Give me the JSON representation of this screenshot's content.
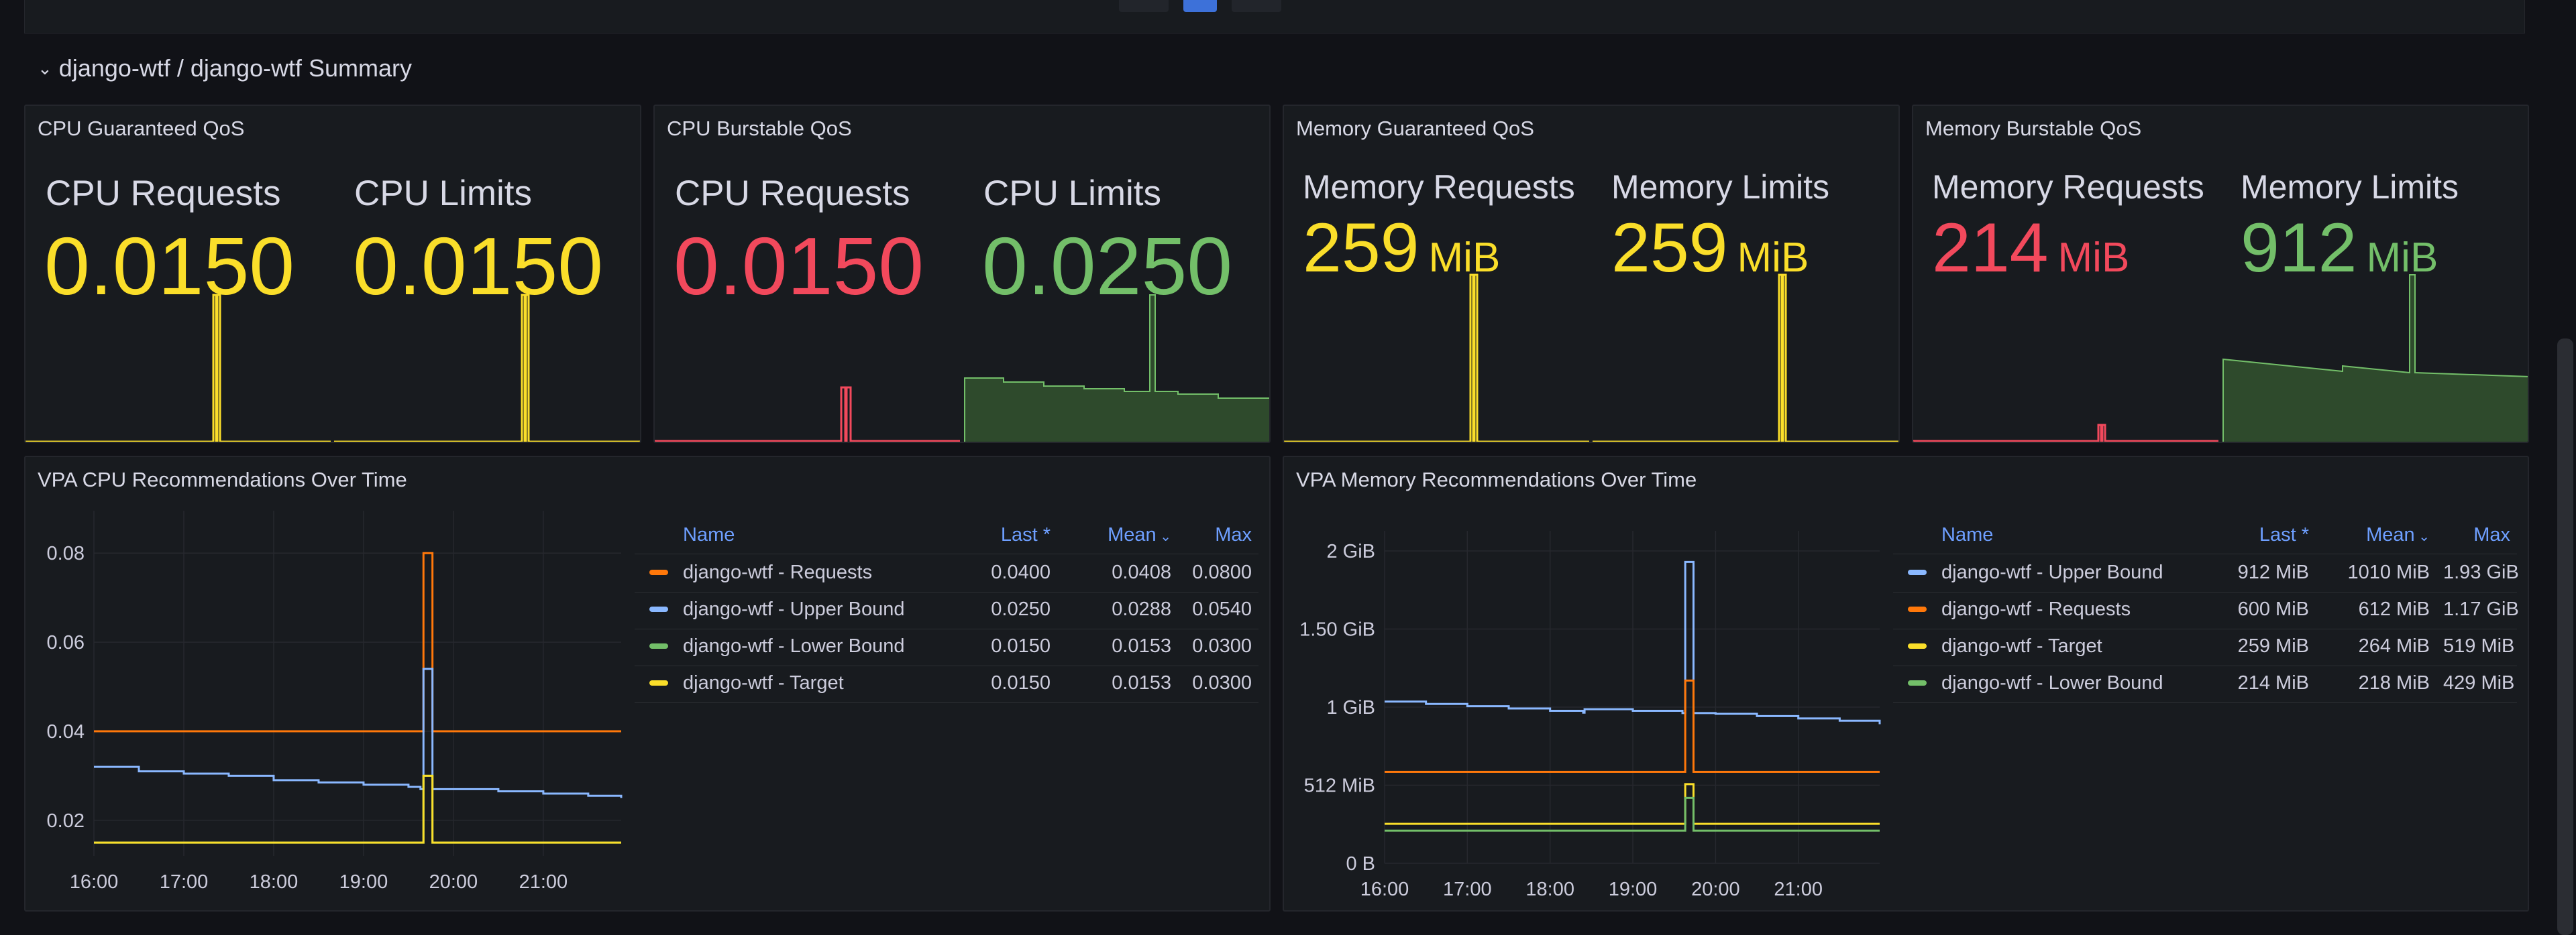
{
  "row": {
    "title": "django-wtf / django-wtf Summary"
  },
  "panels": {
    "cpu_guaranteed": {
      "title": "CPU Guaranteed QoS",
      "requests": {
        "label": "CPU Requests",
        "value": "0.0150",
        "color": "#fade2a"
      },
      "limits": {
        "label": "CPU Limits",
        "value": "0.0150",
        "color": "#fade2a"
      }
    },
    "cpu_burstable": {
      "title": "CPU Burstable QoS",
      "requests": {
        "label": "CPU Requests",
        "value": "0.0150",
        "color": "#f2495c"
      },
      "limits": {
        "label": "CPU Limits",
        "value": "0.0250",
        "color": "#73bf69"
      }
    },
    "mem_guaranteed": {
      "title": "Memory Guaranteed QoS",
      "requests": {
        "label": "Memory Requests",
        "value": "259",
        "unit": "MiB",
        "color": "#fade2a"
      },
      "limits": {
        "label": "Memory Limits",
        "value": "259",
        "unit": "MiB",
        "color": "#fade2a"
      }
    },
    "mem_burstable": {
      "title": "Memory Burstable QoS",
      "requests": {
        "label": "Memory Requests",
        "value": "214",
        "unit": "MiB",
        "color": "#f2495c"
      },
      "limits": {
        "label": "Memory Limits",
        "value": "912",
        "unit": "MiB",
        "color": "#73bf69"
      }
    },
    "vpa_cpu": {
      "title": "VPA CPU Recommendations Over Time",
      "legend_headers": {
        "name": "Name",
        "last": "Last *",
        "mean": "Mean",
        "max": "Max"
      },
      "legend_rows": [
        {
          "name": "django-wtf - Requests",
          "last": "0.0400",
          "mean": "0.0408",
          "max": "0.0800",
          "color": "#ff780a"
        },
        {
          "name": "django-wtf - Upper Bound",
          "last": "0.0250",
          "mean": "0.0288",
          "max": "0.0540",
          "color": "#8ab8ff"
        },
        {
          "name": "django-wtf - Lower Bound",
          "last": "0.0150",
          "mean": "0.0153",
          "max": "0.0300",
          "color": "#73bf69"
        },
        {
          "name": "django-wtf - Target",
          "last": "0.0150",
          "mean": "0.0153",
          "max": "0.0300",
          "color": "#fade2a"
        }
      ]
    },
    "vpa_mem": {
      "title": "VPA Memory Recommendations Over Time",
      "legend_headers": {
        "name": "Name",
        "last": "Last *",
        "mean": "Mean",
        "max": "Max"
      },
      "legend_rows": [
        {
          "name": "django-wtf - Upper Bound",
          "last": "912 MiB",
          "mean": "1010 MiB",
          "max": "1.93 GiB",
          "color": "#8ab8ff"
        },
        {
          "name": "django-wtf - Requests",
          "last": "600 MiB",
          "mean": "612 MiB",
          "max": "1.17 GiB",
          "color": "#ff780a"
        },
        {
          "name": "django-wtf - Target",
          "last": "259 MiB",
          "mean": "264 MiB",
          "max": "519 MiB",
          "color": "#fade2a"
        },
        {
          "name": "django-wtf - Lower Bound",
          "last": "214 MiB",
          "mean": "218 MiB",
          "max": "429 MiB",
          "color": "#73bf69"
        }
      ]
    }
  },
  "chart_data": [
    {
      "type": "line",
      "title": "VPA CPU Recommendations Over Time",
      "x": [
        "16:00",
        "16:30",
        "17:00",
        "17:30",
        "18:00",
        "18:30",
        "19:00",
        "19:30",
        "19:38",
        "19:40",
        "19:44",
        "19:46",
        "20:00",
        "20:30",
        "21:00",
        "21:30",
        "21:52"
      ],
      "x_ticks": [
        "16:00",
        "17:00",
        "18:00",
        "19:00",
        "20:00",
        "21:00"
      ],
      "y_ticks": [
        "0.02",
        "0.04",
        "0.06",
        "0.08"
      ],
      "ylim": [
        0.012,
        0.085
      ],
      "series": [
        {
          "name": "django-wtf - Requests",
          "color": "#ff780a",
          "values": [
            0.04,
            0.04,
            0.04,
            0.04,
            0.04,
            0.04,
            0.04,
            0.04,
            0.04,
            0.08,
            0.08,
            0.04,
            0.04,
            0.04,
            0.04,
            0.04,
            0.04
          ]
        },
        {
          "name": "django-wtf - Upper Bound",
          "color": "#8ab8ff",
          "values": [
            0.032,
            0.031,
            0.0305,
            0.03,
            0.029,
            0.0285,
            0.028,
            0.0275,
            0.027,
            0.054,
            0.054,
            0.027,
            0.027,
            0.0265,
            0.026,
            0.0255,
            0.025
          ]
        },
        {
          "name": "django-wtf - Lower Bound",
          "color": "#73bf69",
          "values": [
            0.015,
            0.015,
            0.015,
            0.015,
            0.015,
            0.015,
            0.015,
            0.015,
            0.015,
            0.03,
            0.03,
            0.015,
            0.015,
            0.015,
            0.015,
            0.015,
            0.015
          ]
        },
        {
          "name": "django-wtf - Target",
          "color": "#fade2a",
          "values": [
            0.015,
            0.015,
            0.015,
            0.015,
            0.015,
            0.015,
            0.015,
            0.015,
            0.015,
            0.03,
            0.03,
            0.015,
            0.015,
            0.015,
            0.015,
            0.015,
            0.015
          ]
        }
      ]
    },
    {
      "type": "line",
      "title": "VPA Memory Recommendations Over Time",
      "x": [
        "16:00",
        "16:30",
        "17:00",
        "17:30",
        "18:00",
        "18:24",
        "18:25",
        "19:00",
        "19:36",
        "19:38",
        "19:40",
        "19:44",
        "20:00",
        "20:30",
        "21:00",
        "21:30",
        "21:59"
      ],
      "x_ticks": [
        "16:00",
        "17:00",
        "18:00",
        "19:00",
        "20:00",
        "21:00"
      ],
      "y_ticks": [
        "0 B",
        "512 MiB",
        "1 GiB",
        "1.50 GiB",
        "2 GiB"
      ],
      "ylim": [
        0,
        2048
      ],
      "series": [
        {
          "name": "django-wtf - Upper Bound",
          "color": "#8ab8ff",
          "values": [
            1060,
            1045,
            1030,
            1015,
            1000,
            988,
            1010,
            1000,
            985,
            1976,
            1976,
            985,
            980,
            965,
            950,
            935,
            912
          ]
        },
        {
          "name": "django-wtf - Requests",
          "color": "#ff780a",
          "values": [
            600,
            600,
            600,
            600,
            600,
            600,
            600,
            600,
            600,
            1198,
            1198,
            600,
            600,
            600,
            600,
            600,
            600
          ]
        },
        {
          "name": "django-wtf - Target",
          "color": "#fade2a",
          "values": [
            259,
            259,
            259,
            259,
            259,
            259,
            259,
            259,
            259,
            519,
            519,
            259,
            259,
            259,
            259,
            259,
            259
          ]
        },
        {
          "name": "django-wtf - Lower Bound",
          "color": "#73bf69",
          "values": [
            214,
            214,
            214,
            214,
            214,
            214,
            214,
            214,
            214,
            429,
            429,
            214,
            214,
            214,
            214,
            214,
            214
          ]
        }
      ]
    }
  ]
}
